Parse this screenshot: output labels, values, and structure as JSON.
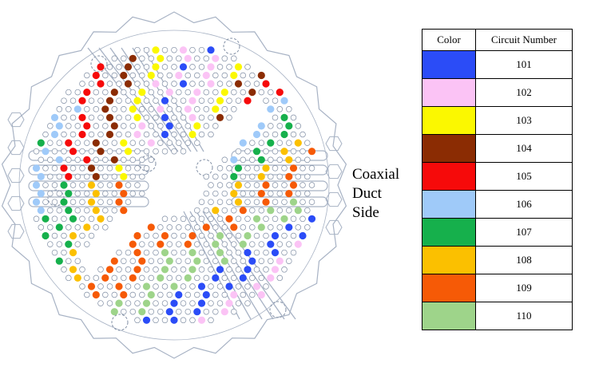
{
  "side_label": [
    "Coaxial",
    "Duct",
    "Side"
  ],
  "legend": {
    "headers": [
      "Color",
      "Circuit Number"
    ],
    "rows": [
      {
        "number": "101",
        "color": "#2b4cf7"
      },
      {
        "number": "102",
        "color": "#fbc3f5"
      },
      {
        "number": "103",
        "color": "#fbf800"
      },
      {
        "number": "104",
        "color": "#8b2c03"
      },
      {
        "number": "105",
        "color": "#f60a0a"
      },
      {
        "number": "106",
        "color": "#9fcaf9"
      },
      {
        "number": "107",
        "color": "#16b04c"
      },
      {
        "number": "108",
        "color": "#fbc000"
      },
      {
        "number": "109",
        "color": "#f65a06"
      },
      {
        "number": "110",
        "color": "#9ed48a"
      }
    ]
  },
  "diagram": {
    "outline_color": "#a7b2c4",
    "hole_color": "#7f8da3"
  }
}
